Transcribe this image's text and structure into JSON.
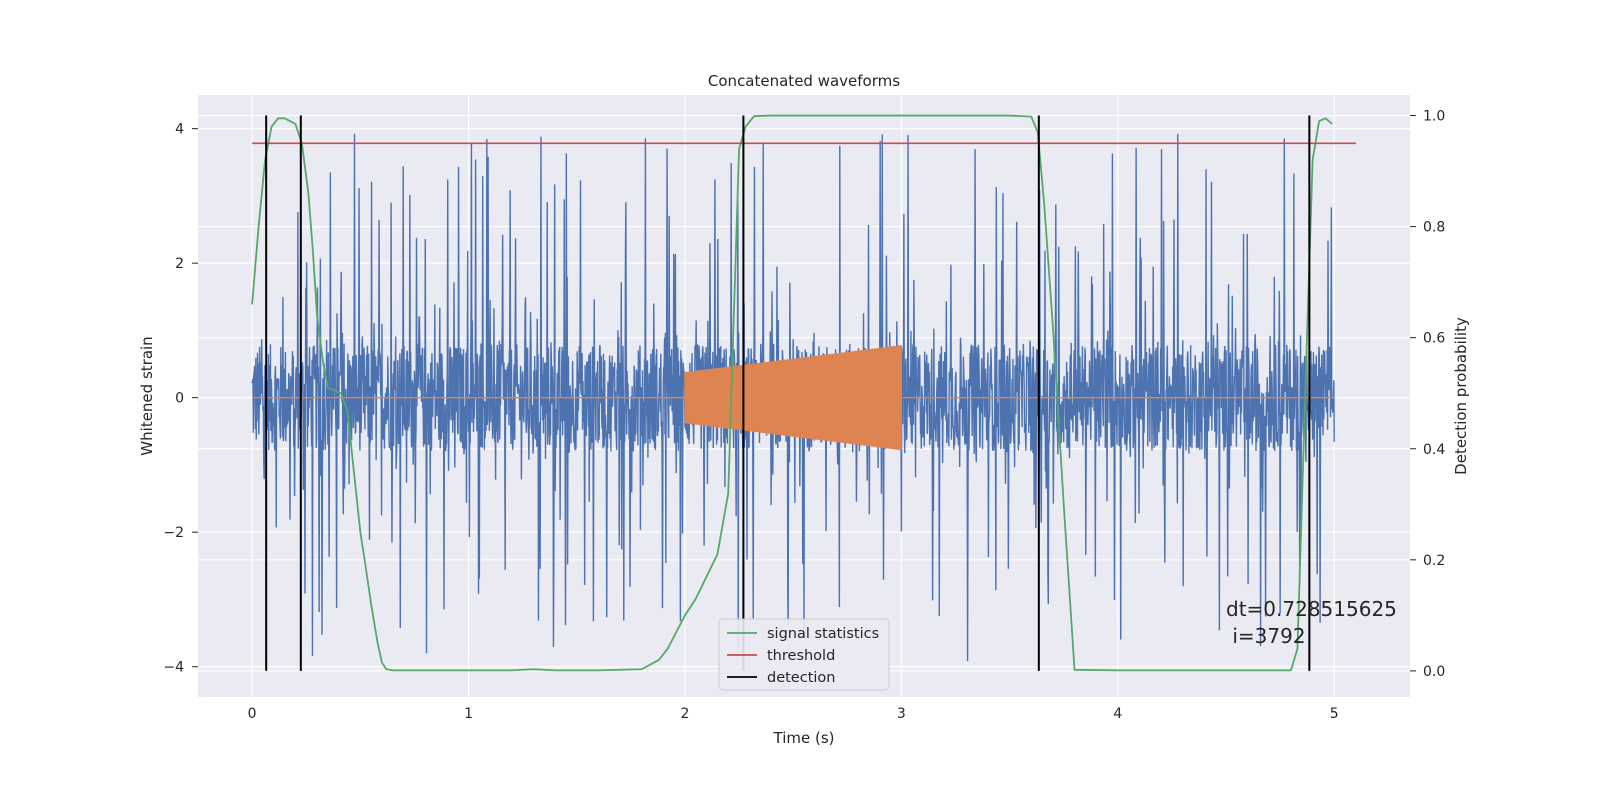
{
  "chart_data": {
    "type": "line",
    "title": "Concatenated waveforms",
    "xlabel": "Time (s)",
    "ylabel": "Whitened strain",
    "ylabel_right": "Detection probability",
    "xlim": [
      -0.25,
      5.35
    ],
    "ylim": [
      -4.45,
      4.5
    ],
    "ylim_right": [
      -0.047,
      1.037
    ],
    "x_ticks": [
      0,
      1,
      2,
      3,
      4,
      5
    ],
    "y_ticks": [
      -4,
      -2,
      0,
      2,
      4
    ],
    "y_ticks_right": [
      0.0,
      0.2,
      0.4,
      0.6,
      0.8,
      1.0
    ],
    "y_tick_labels": [
      "−4",
      "−2",
      "0",
      "2",
      "4"
    ],
    "y_tick_labels_right": [
      "0.0",
      "0.2",
      "0.4",
      "0.6",
      "0.8",
      "1.0"
    ],
    "grid": true,
    "legend_position": "lower-center",
    "colors": {
      "strain": "#4c72b0",
      "injection": "#dd8452",
      "signal_statistics": "#55a868",
      "threshold": "#c44e52",
      "detection": "#000000",
      "plot_bg": "#eaeaf2",
      "grid": "#ffffff"
    },
    "series": [
      {
        "name": "",
        "axis": "left",
        "kind": "noise",
        "x_range": [
          0,
          5
        ],
        "core_amplitude": 0.8,
        "peak_amplitude": 4.1
      },
      {
        "name": "",
        "axis": "left",
        "kind": "chirp",
        "x_range": [
          2.0,
          3.0
        ],
        "amplitude_start": 0.38,
        "amplitude_end": 0.78
      },
      {
        "name": "signal statistics",
        "axis": "right",
        "x": [
          0.0,
          0.03,
          0.06,
          0.09,
          0.12,
          0.15,
          0.2,
          0.23,
          0.26,
          0.28,
          0.3,
          0.33,
          0.35,
          0.38,
          0.41,
          0.44,
          0.47,
          0.5,
          0.52,
          0.55,
          0.58,
          0.6,
          0.62,
          0.65,
          0.8,
          1.0,
          1.2,
          1.3,
          1.4,
          1.6,
          1.8,
          1.88,
          1.92,
          1.96,
          2.0,
          2.05,
          2.1,
          2.15,
          2.2,
          2.25,
          2.28,
          2.32,
          2.4,
          3.0,
          3.5,
          3.6,
          3.63,
          3.66,
          3.7,
          3.75,
          3.8,
          4.0,
          4.5,
          4.8,
          4.83,
          4.87,
          4.9,
          4.93,
          4.96,
          4.99
        ],
        "y": [
          0.66,
          0.8,
          0.92,
          0.98,
          0.995,
          0.995,
          0.985,
          0.95,
          0.86,
          0.76,
          0.64,
          0.55,
          0.51,
          0.505,
          0.5,
          0.47,
          0.36,
          0.25,
          0.2,
          0.12,
          0.05,
          0.015,
          0.003,
          0.001,
          0.001,
          0.001,
          0.001,
          0.003,
          0.001,
          0.001,
          0.003,
          0.02,
          0.04,
          0.07,
          0.1,
          0.13,
          0.17,
          0.21,
          0.32,
          0.94,
          0.98,
          0.999,
          1.0,
          1.0,
          1.0,
          0.998,
          0.97,
          0.84,
          0.62,
          0.3,
          0.002,
          0.001,
          0.001,
          0.001,
          0.04,
          0.55,
          0.92,
          0.99,
          0.995,
          0.985
        ]
      },
      {
        "name": "threshold",
        "axis": "right",
        "x": [
          0,
          5.1
        ],
        "y": [
          0.95,
          0.95
        ]
      },
      {
        "name": "detection",
        "axis": "right",
        "kind": "vlines",
        "x": [
          0.065,
          0.225,
          2.27,
          3.635,
          4.885
        ],
        "y_range": [
          0.0,
          1.0
        ]
      }
    ],
    "annotations": [
      "dt=0.728515625",
      " i=3792"
    ],
    "legend": [
      "signal statistics",
      "threshold",
      "detection"
    ]
  }
}
